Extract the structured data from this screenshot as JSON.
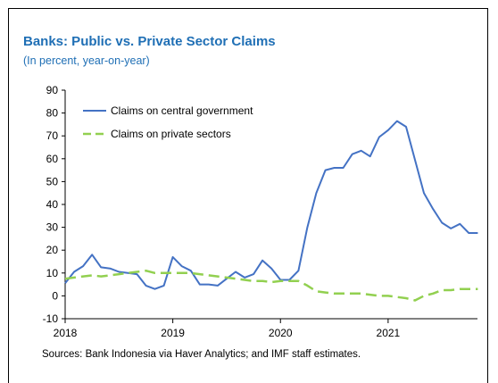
{
  "chart_data": {
    "type": "line",
    "title": "Banks: Public vs. Private Sector Claims",
    "subtitle": "(In percent, year-on-year)",
    "source": "Sources: Bank Indonesia via Haver Analytics; and IMF staff estimates.",
    "ylim": [
      -10,
      90
    ],
    "yticks": [
      -10,
      0,
      10,
      20,
      30,
      40,
      50,
      60,
      70,
      80,
      90
    ],
    "xlim": [
      2018.0,
      2021.83
    ],
    "xticks": [
      2018,
      2019,
      2020,
      2021
    ],
    "xtick_labels": [
      "2018",
      "2019",
      "2020",
      "2021"
    ],
    "legend_position": "top-left",
    "grid": false,
    "series": [
      {
        "name": "Claims on central government",
        "color": "#4472c4",
        "style": "solid",
        "x": [
          2018.0,
          2018.083,
          2018.167,
          2018.25,
          2018.333,
          2018.417,
          2018.5,
          2018.583,
          2018.667,
          2018.75,
          2018.833,
          2018.917,
          2019.0,
          2019.083,
          2019.167,
          2019.25,
          2019.333,
          2019.417,
          2019.5,
          2019.583,
          2019.667,
          2019.75,
          2019.833,
          2019.917,
          2020.0,
          2020.083,
          2020.167,
          2020.25,
          2020.333,
          2020.417,
          2020.5,
          2020.583,
          2020.667,
          2020.75,
          2020.833,
          2020.917,
          2021.0,
          2021.083,
          2021.167,
          2021.25,
          2021.333,
          2021.417,
          2021.5,
          2021.583,
          2021.667,
          2021.75,
          2021.833
        ],
        "values": [
          5.5,
          10.5,
          13,
          18,
          12.5,
          12,
          10.5,
          10,
          9.5,
          4.5,
          3,
          4.5,
          17,
          13,
          11,
          5,
          5,
          4.5,
          7.5,
          10.5,
          8,
          9.5,
          15.5,
          12,
          7,
          7,
          11,
          30,
          45,
          55,
          56,
          56,
          62,
          63.5,
          61,
          69.5,
          72.5,
          76.5,
          74,
          59.5,
          45,
          38,
          32,
          29.5,
          31.5,
          27.5,
          27.5
        ]
      },
      {
        "name": "Claims on private sectors",
        "color": "#92d050",
        "style": "dashed",
        "x": [
          2018.0,
          2018.083,
          2018.167,
          2018.25,
          2018.333,
          2018.417,
          2018.5,
          2018.583,
          2018.667,
          2018.75,
          2018.833,
          2018.917,
          2019.0,
          2019.083,
          2019.167,
          2019.25,
          2019.333,
          2019.417,
          2019.5,
          2019.583,
          2019.667,
          2019.75,
          2019.833,
          2019.917,
          2020.0,
          2020.083,
          2020.167,
          2020.25,
          2020.333,
          2020.417,
          2020.5,
          2020.583,
          2020.667,
          2020.75,
          2020.833,
          2020.917,
          2021.0,
          2021.083,
          2021.167,
          2021.25,
          2021.333,
          2021.417,
          2021.5,
          2021.583,
          2021.667,
          2021.75,
          2021.833
        ],
        "values": [
          7.5,
          8,
          8.5,
          9,
          8.5,
          9,
          9.5,
          10,
          10.5,
          11,
          10,
          10,
          10,
          10,
          10,
          9.5,
          9,
          8.5,
          8,
          7.5,
          7,
          6.5,
          6.5,
          6,
          6.5,
          6.5,
          6.5,
          4.5,
          2,
          1.5,
          1,
          1,
          1,
          1,
          0.5,
          0,
          0,
          -0.5,
          -1,
          -2,
          0,
          1,
          2.5,
          2.5,
          3,
          3,
          3
        ]
      }
    ]
  }
}
